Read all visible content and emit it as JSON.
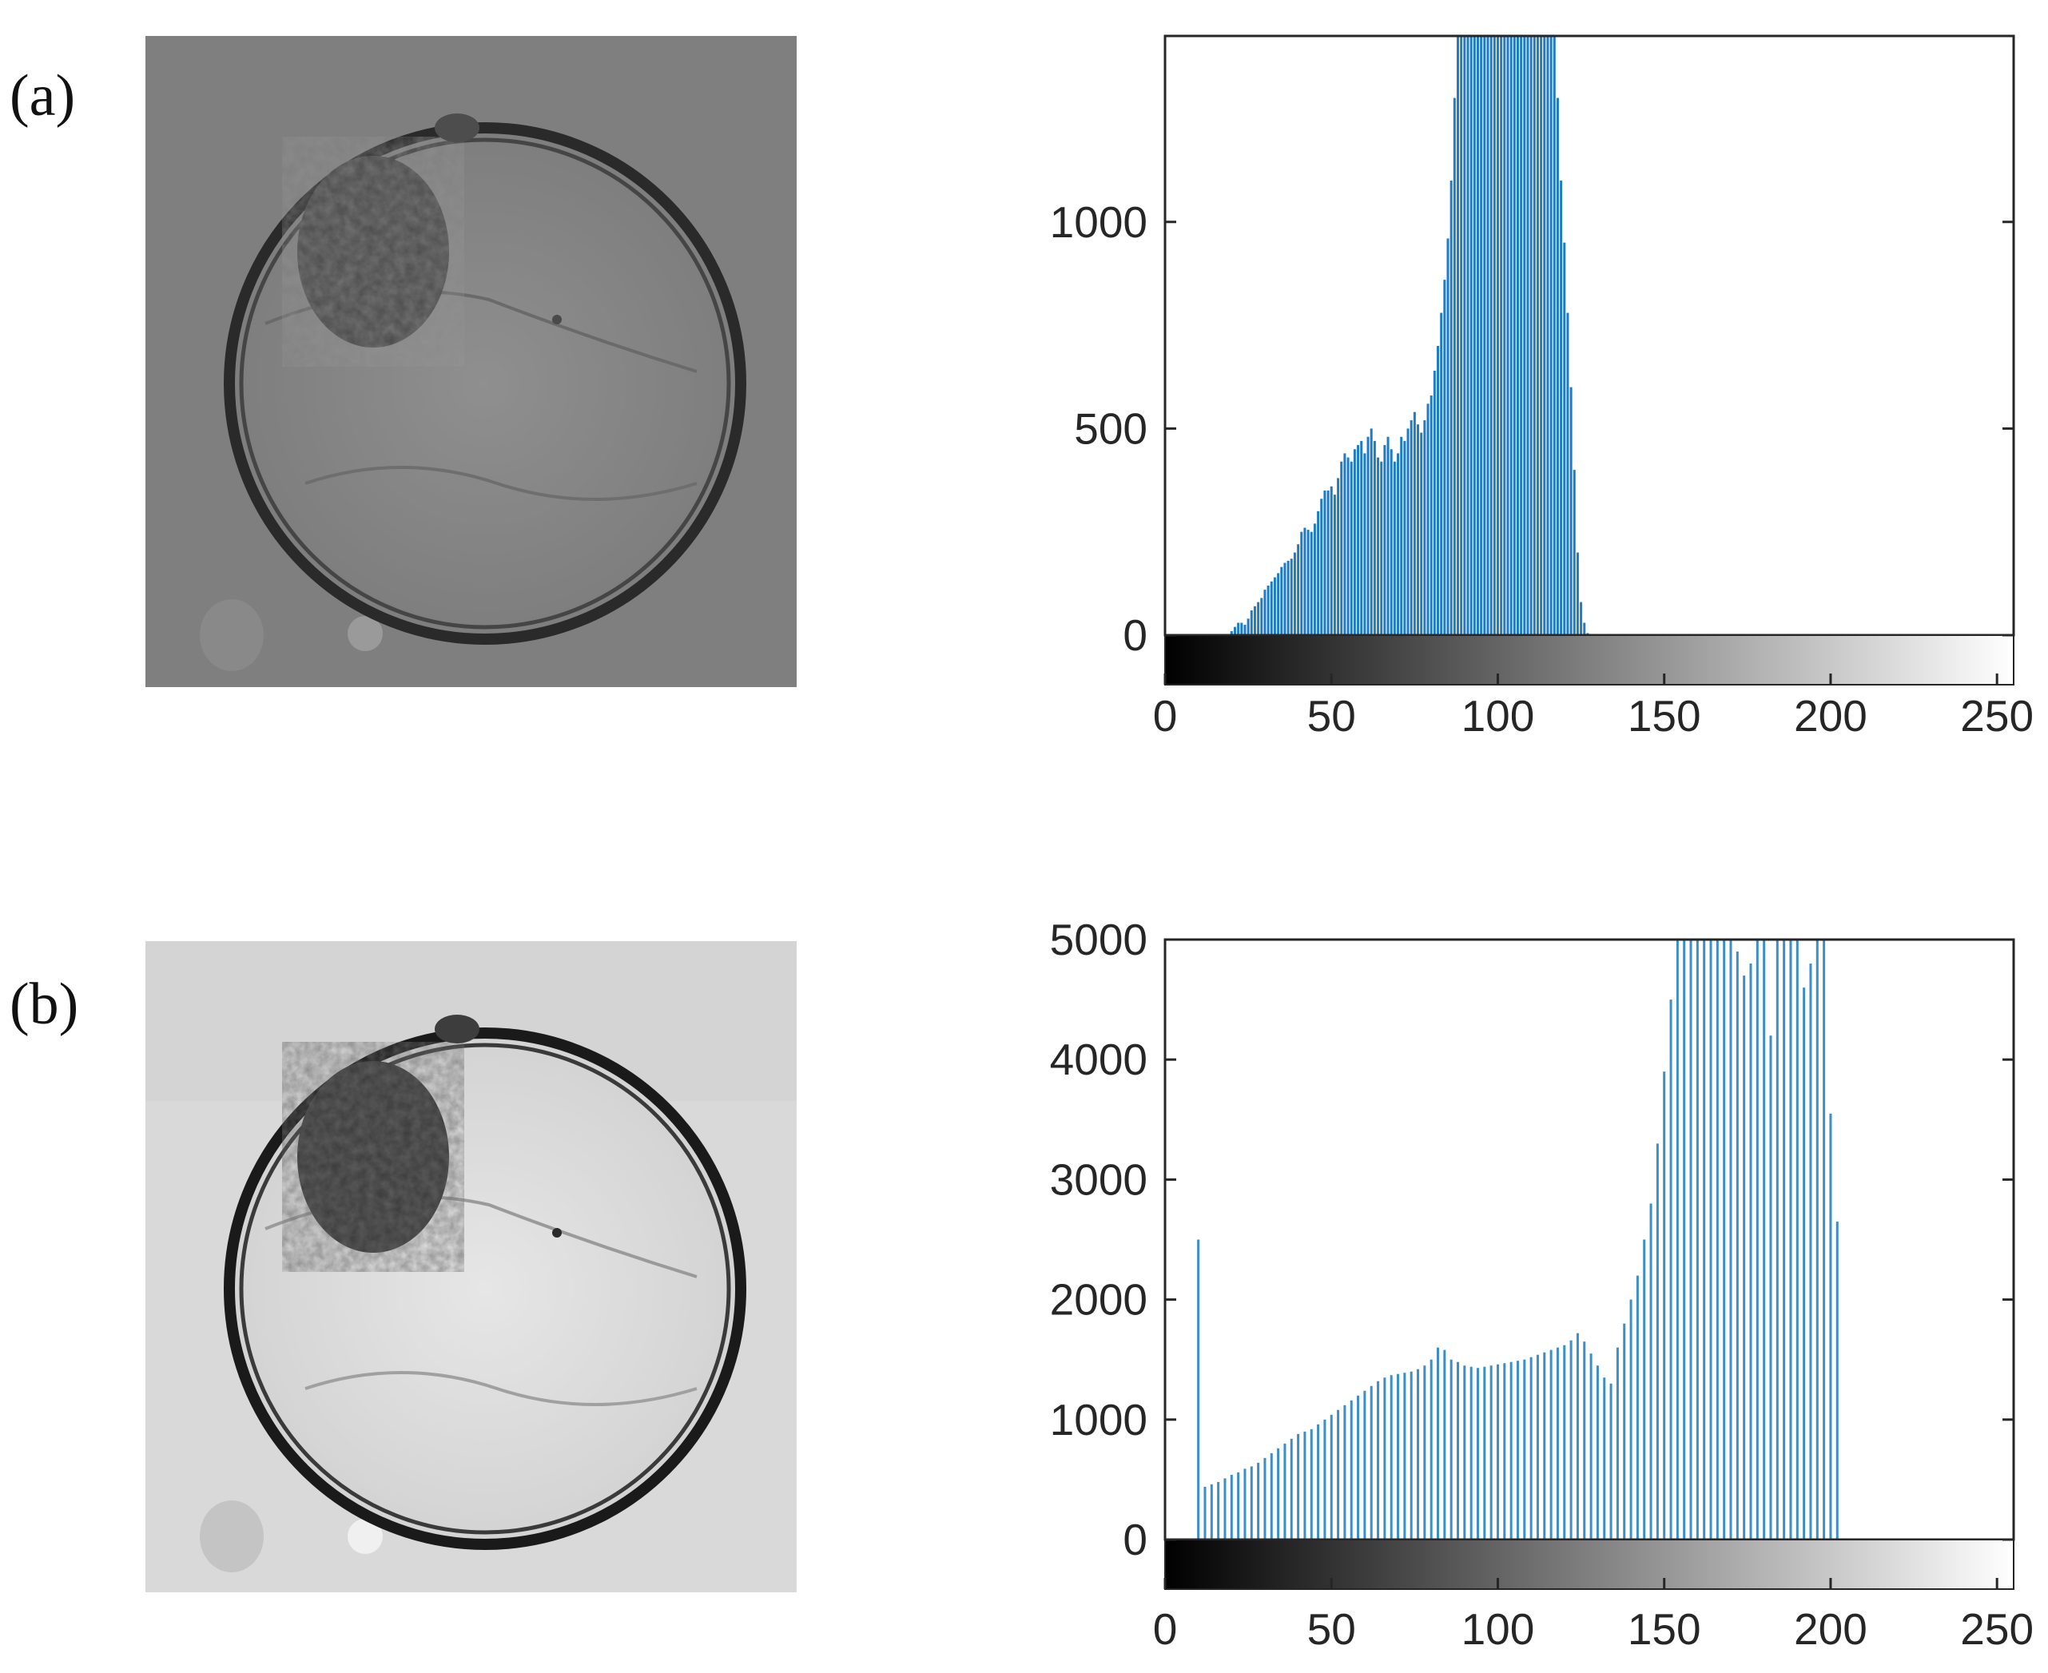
{
  "panels": [
    {
      "label": "(a)"
    },
    {
      "label": "(b)"
    }
  ],
  "chart_data": [
    {
      "type": "bar",
      "title": "",
      "xlabel": "",
      "ylabel": "",
      "xlim": [
        0,
        255
      ],
      "ylim": [
        0,
        1450
      ],
      "xticks": [
        "0",
        "50",
        "100",
        "150",
        "200",
        "250"
      ],
      "yticks": [
        "0",
        "500",
        "1000"
      ],
      "colorbar": "grayscale 0-255 below x axis",
      "bar_color": "#1f7cc4",
      "bin_step": 1,
      "x_start": 20,
      "values": [
        10,
        20,
        30,
        30,
        25,
        40,
        60,
        70,
        80,
        90,
        110,
        120,
        130,
        140,
        150,
        165,
        175,
        180,
        185,
        200,
        220,
        250,
        260,
        255,
        250,
        270,
        300,
        330,
        350,
        350,
        360,
        340,
        380,
        420,
        440,
        430,
        420,
        450,
        460,
        470,
        440,
        480,
        500,
        470,
        430,
        420,
        460,
        480,
        450,
        420,
        440,
        480,
        470,
        500,
        520,
        540,
        510,
        490,
        520,
        560,
        580,
        640,
        700,
        780,
        860,
        960,
        1100,
        1300,
        1450,
        1450,
        1450,
        1450,
        1450,
        1450,
        1450,
        1450,
        1450,
        1450,
        1450,
        1450,
        1450,
        1450,
        1450,
        1450,
        1450,
        1450,
        1450,
        1450,
        1450,
        1450,
        1450,
        1450,
        1450,
        1450,
        1450,
        1450,
        1450,
        1450,
        1300,
        1100,
        950,
        780,
        600,
        400,
        200,
        80,
        30,
        5
      ]
    },
    {
      "type": "bar",
      "title": "",
      "xlabel": "",
      "ylabel": "",
      "xlim": [
        0,
        255
      ],
      "ylim": [
        0,
        5000
      ],
      "xticks": [
        "0",
        "50",
        "100",
        "150",
        "200",
        "250"
      ],
      "yticks": [
        "0",
        "1000",
        "2000",
        "3000",
        "4000",
        "5000"
      ],
      "colorbar": "grayscale 0-255 below x axis",
      "bar_color": "#3b8ec6",
      "bin_step": 2,
      "x_start": 10,
      "values": [
        2500,
        440,
        460,
        480,
        510,
        540,
        560,
        590,
        610,
        640,
        680,
        720,
        760,
        800,
        840,
        880,
        900,
        920,
        960,
        1000,
        1040,
        1080,
        1120,
        1160,
        1200,
        1240,
        1280,
        1320,
        1350,
        1370,
        1380,
        1390,
        1400,
        1420,
        1450,
        1500,
        1600,
        1580,
        1500,
        1480,
        1450,
        1440,
        1430,
        1440,
        1450,
        1460,
        1470,
        1480,
        1490,
        1500,
        1520,
        1540,
        1560,
        1580,
        1600,
        1620,
        1660,
        1720,
        1650,
        1550,
        1450,
        1350,
        1300,
        1600,
        1800,
        2000,
        2200,
        2500,
        2800,
        3300,
        3900,
        4500,
        5000,
        5000,
        5000,
        5000,
        5000,
        5000,
        5000,
        5000,
        5000,
        4900,
        4700,
        4800,
        5000,
        5000,
        4200,
        5000,
        5000,
        5000,
        5000,
        4600,
        4800,
        5000,
        5000,
        3550,
        2650
      ]
    }
  ]
}
